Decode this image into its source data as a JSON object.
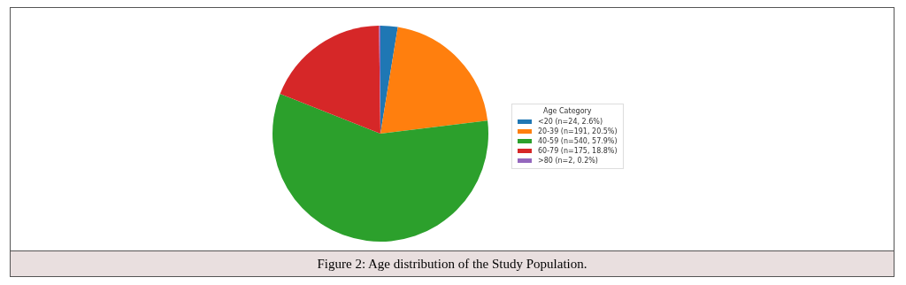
{
  "chart_data": {
    "type": "pie",
    "legend_title": "Age Category",
    "categories": [
      "<20 (n=24, 2.6%)",
      "20-39 (n=191, 20.5%)",
      "40-59 (n=540, 57.9%)",
      "60-79 (n=175, 18.8%)",
      ">80 (n=2, 0.2%)"
    ],
    "values": [
      24,
      191,
      540,
      175,
      2
    ],
    "colors": [
      "#1f77b4",
      "#ff7f0e",
      "#2ca02c",
      "#d62728",
      "#9467bd"
    ],
    "legend": "right",
    "annotations": [
      "Figure 2: Age distribution of the Study Population."
    ]
  }
}
